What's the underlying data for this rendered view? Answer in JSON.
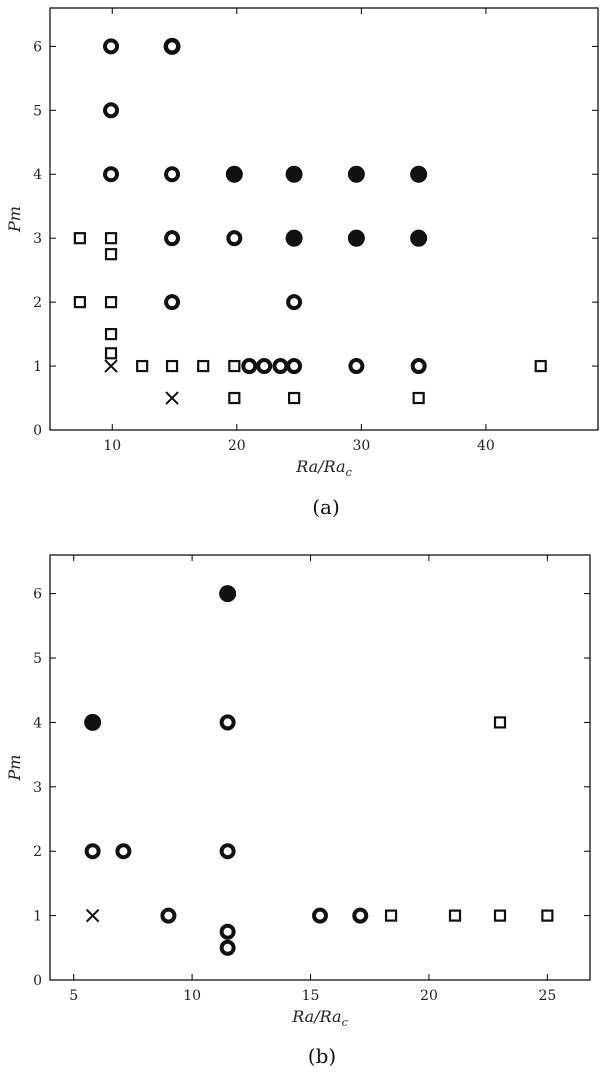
{
  "chart_data": [
    {
      "type": "scatter",
      "caption": "(a)",
      "xlabel": "Ra/Ra_c",
      "ylabel": "Pm",
      "xlim": [
        5,
        49
      ],
      "ylim": [
        0,
        6.6
      ],
      "xticks": [
        10,
        20,
        30,
        40
      ],
      "yticks": [
        0,
        1,
        2,
        3,
        4,
        5,
        6
      ],
      "grid": false,
      "series": [
        {
          "marker": "filled-circle",
          "points": [
            [
              14.8,
              6
            ],
            [
              19.8,
              4
            ],
            [
              24.6,
              4
            ],
            [
              29.6,
              4
            ],
            [
              34.6,
              4
            ],
            [
              24.6,
              3
            ],
            [
              29.6,
              3
            ],
            [
              34.6,
              3
            ]
          ]
        },
        {
          "marker": "ring",
          "points": [
            [
              9.9,
              6
            ],
            [
              14.8,
              6
            ],
            [
              9.9,
              5
            ],
            [
              9.9,
              4
            ],
            [
              14.8,
              4
            ],
            [
              14.8,
              3
            ],
            [
              19.8,
              3
            ],
            [
              14.8,
              2
            ],
            [
              24.6,
              2
            ],
            [
              21.0,
              1
            ],
            [
              22.2,
              1
            ],
            [
              23.5,
              1
            ],
            [
              24.6,
              1
            ],
            [
              29.6,
              1
            ],
            [
              34.6,
              1
            ]
          ]
        },
        {
          "marker": "square",
          "points": [
            [
              7.4,
              3
            ],
            [
              9.9,
              3
            ],
            [
              9.9,
              2.75
            ],
            [
              7.4,
              2
            ],
            [
              9.9,
              2
            ],
            [
              9.9,
              1.5
            ],
            [
              9.9,
              1.2
            ],
            [
              12.4,
              1
            ],
            [
              14.8,
              1
            ],
            [
              17.3,
              1
            ],
            [
              19.8,
              1
            ],
            [
              44.4,
              1
            ],
            [
              19.8,
              0.5
            ],
            [
              24.6,
              0.5
            ],
            [
              34.6,
              0.5
            ]
          ]
        },
        {
          "marker": "cross",
          "points": [
            [
              9.9,
              1
            ],
            [
              14.8,
              0.5
            ]
          ]
        }
      ]
    },
    {
      "type": "scatter",
      "caption": "(b)",
      "xlabel": "Ra/Ra_c",
      "ylabel": "Pm",
      "xlim": [
        4,
        26.8
      ],
      "ylim": [
        0,
        6.6
      ],
      "xticks": [
        5,
        10,
        15,
        20,
        25
      ],
      "yticks": [
        0,
        1,
        2,
        3,
        4,
        5,
        6
      ],
      "grid": false,
      "series": [
        {
          "marker": "filled-circle",
          "points": [
            [
              5.8,
              4
            ],
            [
              11.5,
              6
            ]
          ]
        },
        {
          "marker": "ring",
          "points": [
            [
              11.5,
              4
            ],
            [
              5.8,
              2
            ],
            [
              7.1,
              2
            ],
            [
              11.5,
              2
            ],
            [
              9.0,
              1
            ],
            [
              15.4,
              1
            ],
            [
              17.1,
              1
            ],
            [
              11.5,
              0.75
            ],
            [
              11.5,
              0.5
            ]
          ]
        },
        {
          "marker": "square",
          "points": [
            [
              23.0,
              4
            ],
            [
              18.4,
              1
            ],
            [
              21.1,
              1
            ],
            [
              23.0,
              1
            ],
            [
              25.0,
              1
            ]
          ]
        },
        {
          "marker": "cross",
          "points": [
            [
              5.8,
              1
            ]
          ]
        }
      ]
    }
  ]
}
